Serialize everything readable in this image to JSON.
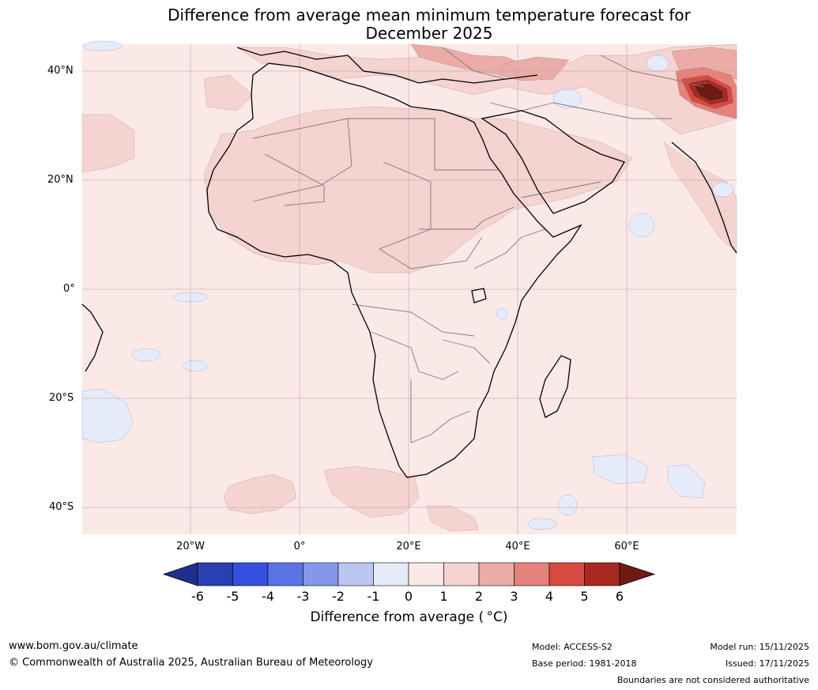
{
  "title": {
    "line1": "Difference from average mean minimum temperature forecast for",
    "line2": "December 2025"
  },
  "map": {
    "lat_labels": [
      "40°N",
      "20°N",
      "0°",
      "20°S",
      "40°S"
    ],
    "lon_labels": [
      "20°W",
      "0°",
      "20°E",
      "40°E",
      "60°E"
    ],
    "background_color": "#fbe9e8"
  },
  "colorbar": {
    "ticks": [
      "-6",
      "-5",
      "-4",
      "-3",
      "-2",
      "-1",
      "0",
      "1",
      "2",
      "3",
      "4",
      "5",
      "6"
    ],
    "colors": [
      "#1f2f8c",
      "#2a40b2",
      "#3550e0",
      "#5a74e6",
      "#8497ea",
      "#bcc6f1",
      "#e6ebfa",
      "#fbe9e8",
      "#f4d3d0",
      "#ebaca8",
      "#e4827b",
      "#d64a40",
      "#a9281f",
      "#6e1a14"
    ],
    "label": "Difference from average ( °C)"
  },
  "footer": {
    "website": "www.bom.gov.au/climate",
    "copyright": "© Commonwealth of Australia 2025, Australian Bureau of Meteorology",
    "model": "Model: ACCESS-S2",
    "base_period": "Base period: 1981-2018",
    "model_run": "Model run: 15/11/2025",
    "issued": "Issued: 17/11/2025",
    "disclaimer": "Boundaries are not considered authoritative"
  }
}
